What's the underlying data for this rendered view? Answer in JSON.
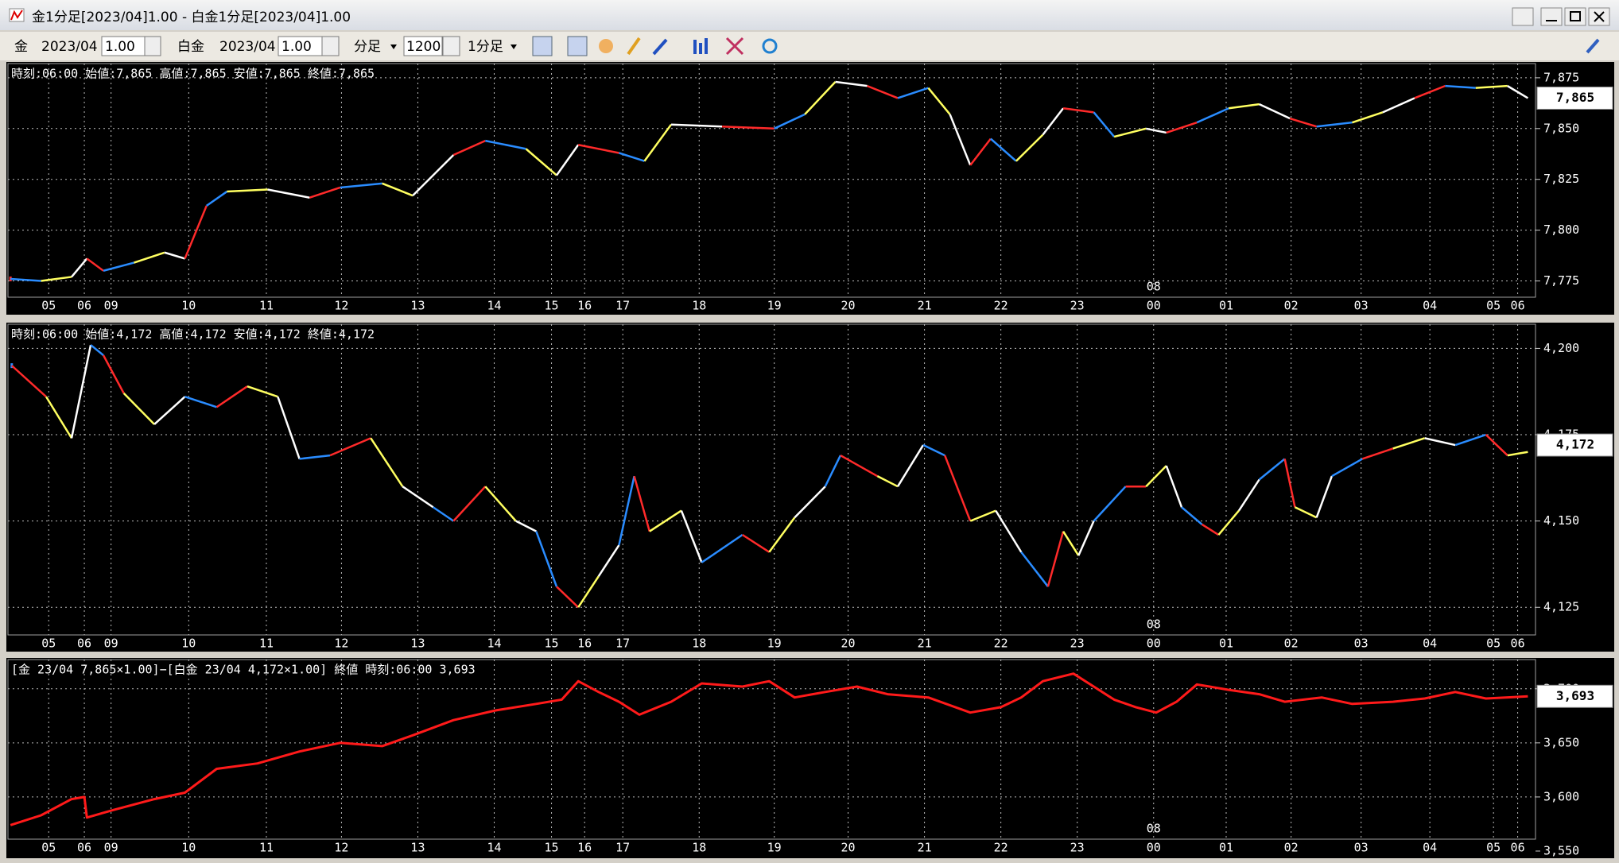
{
  "window": {
    "title": "金1分足[2023/04]1.00 - 白金1分足[2023/04]1.00"
  },
  "toolbar": {
    "gold_label": "金",
    "gold_month": "2023/04",
    "gold_mult": "1.00",
    "plat_label": "白金",
    "plat_month": "2023/04",
    "plat_mult": "1.00",
    "period_unit": "分足",
    "bar_count": "1200",
    "period": "1分足"
  },
  "chart_data": [
    {
      "type": "line",
      "info": "時刻:06:00 始値:7,865 高値:7,865 安値:7,865 終値:7,865",
      "current": {
        "value": 7865,
        "label": "7,865"
      },
      "annotation": {
        "x": 900,
        "label": "08"
      },
      "xlim": [
        0,
        1200
      ],
      "ylim": [
        7767,
        7882
      ],
      "grid": true,
      "yticks": [
        {
          "value": 7775,
          "label": "7,775"
        },
        {
          "value": 7800,
          "label": "7,800"
        },
        {
          "value": 7825,
          "label": "7,825"
        },
        {
          "value": 7850,
          "label": "7,850"
        },
        {
          "value": 7875,
          "label": "7,875"
        }
      ],
      "xticks": [
        {
          "value": 32,
          "label": "05"
        },
        {
          "value": 60,
          "label": "06"
        },
        {
          "value": 81,
          "label": "09"
        },
        {
          "value": 142,
          "label": "10"
        },
        {
          "value": 203,
          "label": "11"
        },
        {
          "value": 262,
          "label": "12"
        },
        {
          "value": 322,
          "label": "13"
        },
        {
          "value": 382,
          "label": "14"
        },
        {
          "value": 427,
          "label": "15"
        },
        {
          "value": 453,
          "label": "16"
        },
        {
          "value": 483,
          "label": "17"
        },
        {
          "value": 543,
          "label": "18"
        },
        {
          "value": 602,
          "label": "19"
        },
        {
          "value": 660,
          "label": "20"
        },
        {
          "value": 720,
          "label": "21"
        },
        {
          "value": 780,
          "label": "22"
        },
        {
          "value": 840,
          "label": "23"
        },
        {
          "value": 900,
          "label": "00"
        },
        {
          "value": 957,
          "label": "01"
        },
        {
          "value": 1008,
          "label": "02"
        },
        {
          "value": 1063,
          "label": "03"
        },
        {
          "value": 1117,
          "label": "04"
        },
        {
          "value": 1167,
          "label": "05"
        },
        {
          "value": 1186,
          "label": "06"
        }
      ],
      "x": [
        2,
        26,
        50,
        62,
        75,
        99,
        123,
        139,
        156,
        172,
        204,
        237,
        261,
        294,
        318,
        350,
        375,
        407,
        431,
        448,
        480,
        500,
        521,
        561,
        602,
        626,
        650,
        675,
        699,
        723,
        740,
        756,
        772,
        792,
        813,
        829,
        853,
        869,
        894,
        910,
        934,
        959,
        983,
        1007,
        1028,
        1056,
        1080,
        1105,
        1129,
        1153,
        1178,
        1194
      ],
      "series": [
        {
          "colors": [
            "#ff2a2a",
            "#2a8cff",
            "#ffff60",
            "#ffffff"
          ],
          "values": [
            7776,
            7775,
            7777,
            7786,
            7780,
            7784,
            7789,
            7786,
            7812,
            7819,
            7820,
            7816,
            7821,
            7823,
            7817,
            7837,
            7844,
            7840,
            7827,
            7842,
            7838,
            7834,
            7852,
            7851,
            7850,
            7857,
            7873,
            7871,
            7865,
            7870,
            7857,
            7832,
            7845,
            7834,
            7847,
            7860,
            7858,
            7846,
            7850,
            7848,
            7853,
            7860,
            7862,
            7855,
            7851,
            7853,
            7858,
            7865,
            7871,
            7870,
            7871,
            7865
          ]
        }
      ]
    },
    {
      "type": "line",
      "info": "時刻:06:00 始値:4,172 高値:4,172 安値:4,172 終値:4,172",
      "current": {
        "value": 4172,
        "label": "4,172"
      },
      "annotation": {
        "x": 900,
        "label": "08"
      },
      "xlim": [
        0,
        1200
      ],
      "ylim": [
        4117,
        4207
      ],
      "grid": true,
      "yticks": [
        {
          "value": 4125,
          "label": "4,125"
        },
        {
          "value": 4150,
          "label": "4,150"
        },
        {
          "value": 4175,
          "label": "4,175"
        },
        {
          "value": 4200,
          "label": "4,200"
        }
      ],
      "xticks": [
        {
          "value": 32,
          "label": "05"
        },
        {
          "value": 60,
          "label": "06"
        },
        {
          "value": 81,
          "label": "09"
        },
        {
          "value": 142,
          "label": "10"
        },
        {
          "value": 203,
          "label": "11"
        },
        {
          "value": 262,
          "label": "12"
        },
        {
          "value": 322,
          "label": "13"
        },
        {
          "value": 382,
          "label": "14"
        },
        {
          "value": 427,
          "label": "15"
        },
        {
          "value": 453,
          "label": "16"
        },
        {
          "value": 483,
          "label": "17"
        },
        {
          "value": 543,
          "label": "18"
        },
        {
          "value": 602,
          "label": "19"
        },
        {
          "value": 660,
          "label": "20"
        },
        {
          "value": 720,
          "label": "21"
        },
        {
          "value": 780,
          "label": "22"
        },
        {
          "value": 840,
          "label": "23"
        },
        {
          "value": 900,
          "label": "00"
        },
        {
          "value": 957,
          "label": "01"
        },
        {
          "value": 1008,
          "label": "02"
        },
        {
          "value": 1063,
          "label": "03"
        },
        {
          "value": 1117,
          "label": "04"
        },
        {
          "value": 1167,
          "label": "05"
        },
        {
          "value": 1186,
          "label": "06"
        }
      ],
      "x": [
        3,
        30,
        50,
        65,
        75,
        91,
        115,
        139,
        164,
        188,
        212,
        229,
        253,
        285,
        310,
        334,
        350,
        375,
        399,
        415,
        431,
        448,
        464,
        480,
        492,
        504,
        529,
        545,
        577,
        598,
        618,
        642,
        654,
        683,
        699,
        719,
        736,
        756,
        776,
        796,
        817,
        829,
        841,
        853,
        878,
        894,
        910,
        922,
        938,
        951,
        967,
        983,
        1003,
        1011,
        1028,
        1040,
        1064,
        1088,
        1113,
        1137,
        1161,
        1178,
        1194
      ],
      "series": [
        {
          "colors": [
            "#2a8cff",
            "#ff2a2a",
            "#ffff60",
            "#ffffff"
          ],
          "values": [
            4195,
            4186,
            4174,
            4201,
            4198,
            4187,
            4178,
            4186,
            4183,
            4189,
            4186,
            4168,
            4169,
            4174,
            4160,
            4154,
            4150,
            4160,
            4150,
            4147,
            4131,
            4125,
            4134,
            4143,
            4163,
            4147,
            4153,
            4138,
            4146,
            4141,
            4151,
            4160,
            4169,
            4163,
            4160,
            4172,
            4169,
            4150,
            4153,
            4141,
            4131,
            4147,
            4140,
            4150,
            4160,
            4160,
            4166,
            4154,
            4149,
            4146,
            4153,
            4162,
            4168,
            4154,
            4151,
            4163,
            4168,
            4171,
            4174,
            4172,
            4175,
            4169,
            4170
          ]
        }
      ]
    },
    {
      "type": "line",
      "info": "[金 23/04 7,865×1.00]−[白金 23/04 4,172×1.00] 終値 時刻:06:00 3,693",
      "current": {
        "value": 3693,
        "label": "3,693"
      },
      "annotation": {
        "x": 900,
        "label": "08"
      },
      "xlim": [
        0,
        1200
      ],
      "ylim": [
        3561,
        3727
      ],
      "grid": true,
      "yticks": [
        {
          "value": 3550,
          "label": "3,550"
        },
        {
          "value": 3600,
          "label": "3,600"
        },
        {
          "value": 3650,
          "label": "3,650"
        },
        {
          "value": 3700,
          "label": "3,700"
        }
      ],
      "xticks": [
        {
          "value": 32,
          "label": "05"
        },
        {
          "value": 60,
          "label": "06"
        },
        {
          "value": 81,
          "label": "09"
        },
        {
          "value": 142,
          "label": "10"
        },
        {
          "value": 203,
          "label": "11"
        },
        {
          "value": 262,
          "label": "12"
        },
        {
          "value": 322,
          "label": "13"
        },
        {
          "value": 382,
          "label": "14"
        },
        {
          "value": 427,
          "label": "15"
        },
        {
          "value": 453,
          "label": "16"
        },
        {
          "value": 483,
          "label": "17"
        },
        {
          "value": 543,
          "label": "18"
        },
        {
          "value": 602,
          "label": "19"
        },
        {
          "value": 660,
          "label": "20"
        },
        {
          "value": 720,
          "label": "21"
        },
        {
          "value": 780,
          "label": "22"
        },
        {
          "value": 840,
          "label": "23"
        },
        {
          "value": 900,
          "label": "00"
        },
        {
          "value": 957,
          "label": "01"
        },
        {
          "value": 1008,
          "label": "02"
        },
        {
          "value": 1063,
          "label": "03"
        },
        {
          "value": 1117,
          "label": "04"
        },
        {
          "value": 1167,
          "label": "05"
        },
        {
          "value": 1186,
          "label": "06"
        }
      ],
      "x": [
        2,
        26,
        50,
        60,
        62,
        83,
        115,
        139,
        164,
        196,
        229,
        261,
        294,
        318,
        350,
        383,
        415,
        435,
        448,
        464,
        480,
        496,
        521,
        545,
        577,
        598,
        618,
        642,
        667,
        691,
        723,
        756,
        780,
        796,
        813,
        837,
        853,
        869,
        886,
        902,
        918,
        934,
        959,
        983,
        1003,
        1032,
        1056,
        1088,
        1113,
        1137,
        1161,
        1194
      ],
      "series": [
        {
          "color": "#ff1a1a",
          "values": [
            3574,
            3583,
            3598,
            3600,
            3581,
            3588,
            3598,
            3604,
            3626,
            3631,
            3642,
            3650,
            3647,
            3657,
            3671,
            3680,
            3686,
            3690,
            3707,
            3697,
            3688,
            3676,
            3688,
            3705,
            3702,
            3707,
            3692,
            3697,
            3702,
            3695,
            3692,
            3678,
            3683,
            3692,
            3707,
            3714,
            3702,
            3690,
            3683,
            3678,
            3688,
            3704,
            3699,
            3695,
            3688,
            3692,
            3686,
            3688,
            3691,
            3697,
            3691,
            3693
          ]
        }
      ]
    }
  ]
}
